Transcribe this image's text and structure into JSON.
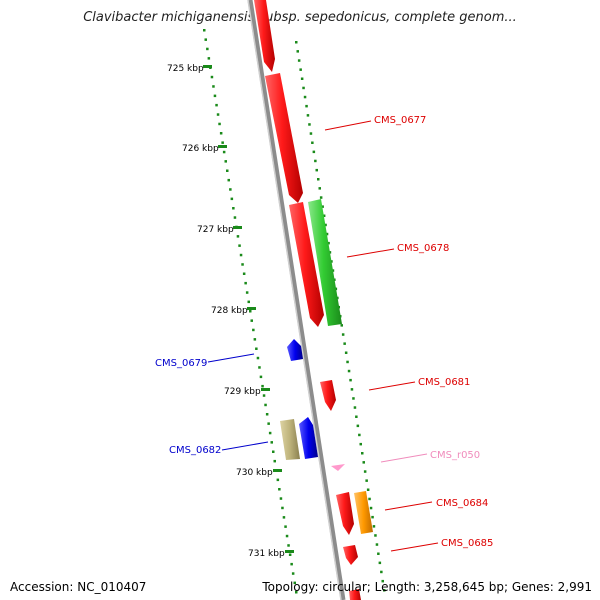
{
  "title": "Clavibacter michiganensis subsp. sepedonicus, complete genom...",
  "footer": {
    "accession": "Accession: NC_010407",
    "summary": "Topology: circular; Length: 3,258,645 bp; Genes: 2,991"
  },
  "ticks": [
    "725 kbp",
    "726 kbp",
    "727 kbp",
    "728 kbp",
    "729 kbp",
    "730 kbp",
    "731 kbp"
  ],
  "genes": [
    {
      "label": "CMS_0677",
      "color": "#dd0000"
    },
    {
      "label": "CMS_0678",
      "color": "#dd0000"
    },
    {
      "label": "CMS_0679",
      "color": "#0000cc"
    },
    {
      "label": "CMS_0681",
      "color": "#dd0000"
    },
    {
      "label": "CMS_0682",
      "color": "#0000cc"
    },
    {
      "label": "CMS_r050",
      "color": "#f08cbc"
    },
    {
      "label": "CMS_0684",
      "color": "#dd0000"
    },
    {
      "label": "CMS_0685",
      "color": "#dd0000"
    }
  ],
  "colors": {
    "backbone": "#8c8c8c",
    "tick": "#1a8a1a",
    "red_feature": "#ff1a1a",
    "green_feature": "#33cc33",
    "blue_feature": "#0000ff",
    "khaki_feature": "#bdb27a",
    "orange_feature": "#ff9900",
    "pink_feature": "#ff99cc"
  }
}
